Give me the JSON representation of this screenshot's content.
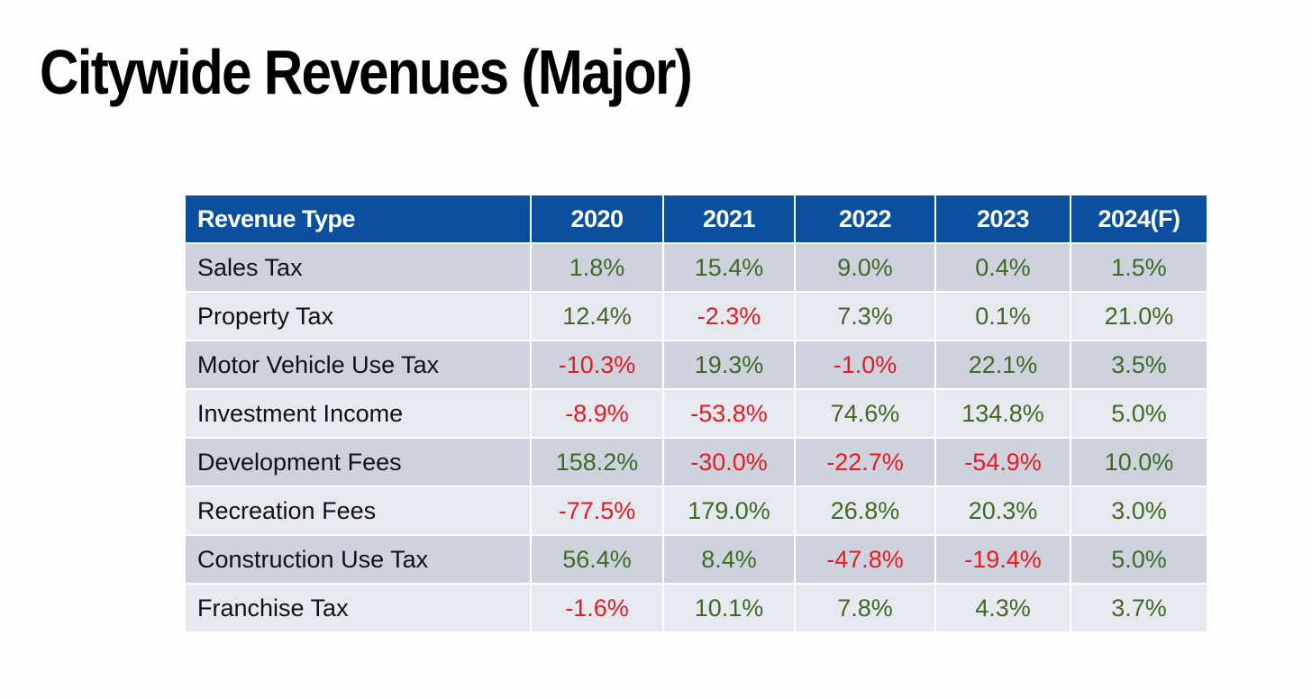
{
  "slide": {
    "title": "Citywide Revenues (Major)"
  },
  "colors": {
    "header_bg": "#0b50a0",
    "header_text": "#ffffff",
    "row_dark": "#cdd2de",
    "row_light": "#e7e9f0",
    "positive": "#3f6a26",
    "negative": "#e8191f"
  },
  "chart_data": {
    "type": "table",
    "columns": [
      "Revenue Type",
      "2020",
      "2021",
      "2022",
      "2023",
      "2024(F)"
    ],
    "rows": [
      {
        "label": "Sales Tax",
        "values": [
          "1.8%",
          "15.4%",
          "9.0%",
          "0.4%",
          "1.5%"
        ]
      },
      {
        "label": "Property Tax",
        "values": [
          "12.4%",
          "-2.3%",
          "7.3%",
          "0.1%",
          "21.0%"
        ]
      },
      {
        "label": "Motor Vehicle Use Tax",
        "values": [
          "-10.3%",
          "19.3%",
          "-1.0%",
          "22.1%",
          "3.5%"
        ]
      },
      {
        "label": "Investment Income",
        "values": [
          "-8.9%",
          "-53.8%",
          "74.6%",
          "134.8%",
          "5.0%"
        ]
      },
      {
        "label": "Development Fees",
        "values": [
          "158.2%",
          "-30.0%",
          "-22.7%",
          "-54.9%",
          "10.0%"
        ]
      },
      {
        "label": "Recreation Fees",
        "values": [
          "-77.5%",
          "179.0%",
          "26.8%",
          "20.3%",
          "3.0%"
        ]
      },
      {
        "label": "Construction Use Tax",
        "values": [
          "56.4%",
          "8.4%",
          "-47.8%",
          "-19.4%",
          "5.0%"
        ]
      },
      {
        "label": "Franchise Tax",
        "values": [
          "-1.6%",
          "10.1%",
          "7.8%",
          "4.3%",
          "3.7%"
        ]
      }
    ]
  }
}
